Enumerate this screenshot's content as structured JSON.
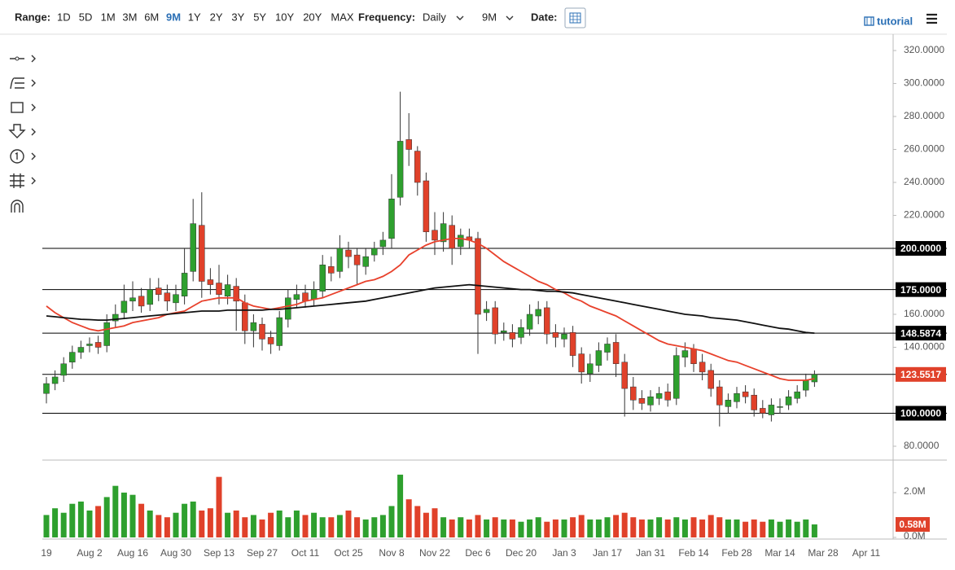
{
  "toolbar": {
    "range_label": "Range:",
    "ranges": [
      "1D",
      "5D",
      "1M",
      "3M",
      "6M",
      "9M",
      "1Y",
      "2Y",
      "3Y",
      "5Y",
      "10Y",
      "20Y",
      "MAX"
    ],
    "active_range": "9M",
    "frequency_label": "Frequency:",
    "frequency": "Daily",
    "period": "9M",
    "date_label": "Date:",
    "tutorial": "tutorial"
  },
  "chart_data": {
    "type": "candlestick",
    "categories": [
      "19",
      null,
      null,
      null,
      null,
      "Aug 2",
      null,
      null,
      null,
      null,
      "Aug 16",
      null,
      null,
      null,
      null,
      "Aug 30",
      null,
      null,
      null,
      null,
      "Sep 13",
      null,
      null,
      null,
      null,
      "Sep 27",
      null,
      null,
      null,
      null,
      "Oct 11",
      null,
      null,
      null,
      null,
      "Oct 25",
      null,
      null,
      null,
      null,
      "Nov 8",
      null,
      null,
      null,
      null,
      "Nov 22",
      null,
      null,
      null,
      null,
      "Dec 6",
      null,
      null,
      null,
      null,
      "Dec 20",
      null,
      null,
      null,
      null,
      "Jan 3",
      null,
      null,
      null,
      null,
      "Jan 17",
      null,
      null,
      null,
      null,
      "Jan 31",
      null,
      null,
      null,
      null,
      "Feb 14",
      null,
      null,
      null,
      null,
      "Feb 28",
      null,
      null,
      null,
      null,
      "Mar 14",
      null,
      null,
      null,
      null,
      "Mar 28",
      null,
      null,
      null,
      null,
      "Apr 11"
    ],
    "open": [
      112,
      118,
      123,
      131,
      137,
      141,
      143,
      141,
      156,
      161,
      168,
      171,
      166,
      176,
      173,
      167,
      171,
      186,
      214,
      181,
      179,
      171,
      177,
      167,
      150,
      154,
      146,
      141,
      157,
      169,
      173,
      169,
      174,
      189,
      186,
      199,
      196,
      189,
      196,
      201,
      206,
      231,
      266,
      259,
      241,
      211,
      204,
      214,
      201,
      207,
      206,
      161,
      164,
      149,
      149,
      146,
      151,
      159,
      164,
      149,
      145,
      149,
      136,
      124,
      129,
      137,
      143,
      131,
      116,
      109,
      105,
      109,
      113,
      109,
      134,
      139,
      131,
      126,
      116,
      104,
      107,
      113,
      111,
      103,
      99,
      104,
      105,
      109,
      114,
      119,
      null,
      null,
      null,
      null,
      null,
      null
    ],
    "high": [
      122,
      126,
      134,
      141,
      144,
      146,
      147,
      160,
      166,
      178,
      180,
      176,
      182,
      182,
      178,
      178,
      200,
      230,
      234,
      188,
      190,
      184,
      182,
      172,
      160,
      158,
      150,
      162,
      175,
      178,
      178,
      180,
      196,
      195,
      208,
      204,
      200,
      200,
      204,
      210,
      245,
      295,
      282,
      262,
      246,
      222,
      222,
      220,
      212,
      212,
      210,
      168,
      168,
      155,
      154,
      157,
      166,
      168,
      168,
      154,
      152,
      153,
      140,
      136,
      143,
      146,
      148,
      136,
      122,
      114,
      114,
      116,
      118,
      140,
      143,
      142,
      136,
      130,
      120,
      112,
      116,
      117,
      115,
      108,
      109,
      109,
      114,
      117,
      124,
      126,
      null,
      null,
      null,
      null,
      null,
      null
    ],
    "low": [
      106,
      114,
      119,
      127,
      133,
      137,
      136,
      137,
      152,
      157,
      162,
      161,
      162,
      168,
      162,
      162,
      166,
      180,
      170,
      172,
      166,
      166,
      150,
      142,
      140,
      138,
      136,
      138,
      152,
      164,
      164,
      165,
      170,
      180,
      182,
      188,
      178,
      184,
      192,
      196,
      200,
      226,
      250,
      232,
      204,
      196,
      198,
      190,
      196,
      200,
      136,
      156,
      142,
      144,
      140,
      142,
      147,
      154,
      142,
      140,
      140,
      128,
      118,
      119,
      125,
      132,
      122,
      98,
      102,
      102,
      101,
      105,
      104,
      105,
      128,
      125,
      120,
      110,
      92,
      100,
      103,
      106,
      98,
      97,
      95,
      100,
      102,
      106,
      110,
      116,
      null,
      null,
      null,
      null,
      null,
      null
    ],
    "close": [
      118,
      122,
      130,
      137,
      140,
      142,
      140,
      155,
      160,
      168,
      170,
      165,
      175,
      172,
      168,
      172,
      185,
      215,
      180,
      178,
      172,
      178,
      168,
      150,
      155,
      145,
      142,
      158,
      170,
      172,
      168,
      175,
      190,
      185,
      200,
      195,
      190,
      195,
      200,
      205,
      230,
      265,
      260,
      240,
      210,
      205,
      215,
      200,
      208,
      205,
      160,
      163,
      148,
      150,
      145,
      152,
      160,
      163,
      148,
      146,
      148,
      135,
      125,
      130,
      138,
      142,
      130,
      115,
      108,
      106,
      110,
      112,
      108,
      135,
      138,
      130,
      125,
      115,
      105,
      108,
      112,
      110,
      102,
      100,
      105,
      104,
      110,
      113,
      120,
      123.5517,
      null,
      null,
      null,
      null,
      null,
      null
    ],
    "up_color": "#2ea02e",
    "down_color": "#e0412a",
    "moving_averages": [
      {
        "color": "#e8412c",
        "values": [
          165,
          161,
          158,
          155,
          153,
          151,
          150,
          151,
          152,
          153,
          155,
          156,
          157,
          158,
          160,
          161,
          162,
          165,
          168,
          169,
          170,
          170,
          170,
          167,
          165,
          164,
          163,
          164,
          165,
          166,
          168,
          169,
          170,
          172,
          174,
          176,
          178,
          180,
          181,
          183,
          186,
          190,
          196,
          199,
          202,
          204,
          205,
          206,
          206,
          205,
          203,
          200,
          196,
          192,
          189,
          186,
          183,
          180,
          178,
          175,
          173,
          170,
          168,
          165,
          163,
          161,
          159,
          156,
          153,
          150,
          147,
          144,
          142,
          141,
          140,
          139,
          138,
          136,
          134,
          132,
          131,
          129,
          127,
          125,
          123,
          121,
          120,
          120,
          120,
          121,
          null,
          null,
          null,
          null,
          null,
          null
        ]
      },
      {
        "color": "#111111",
        "values": [
          159,
          158.5,
          158,
          157.5,
          157,
          156.8,
          156.5,
          156.5,
          157,
          157.5,
          158,
          158.5,
          159,
          159.5,
          160,
          160.5,
          161,
          161.5,
          162,
          162,
          162,
          162.5,
          162.5,
          162.5,
          162.5,
          162.5,
          163,
          163,
          163.5,
          164,
          164.5,
          165,
          165.5,
          166,
          166.5,
          167,
          167.5,
          168,
          169,
          170,
          171,
          172,
          173,
          174,
          175,
          176,
          176.5,
          177,
          177.5,
          178,
          177.5,
          177,
          176.5,
          176,
          175.5,
          175,
          175,
          174.5,
          174,
          174,
          173.5,
          173,
          172,
          171,
          170,
          169,
          168,
          167,
          166,
          165,
          164,
          163,
          162,
          161,
          160,
          159.5,
          159,
          158,
          157.5,
          157,
          156.5,
          155.5,
          154.5,
          153.5,
          152.5,
          151.5,
          151,
          150,
          149,
          148.5874,
          null,
          null,
          null,
          null,
          null,
          null
        ]
      }
    ],
    "ylim": [
      71.6,
      329.9
    ],
    "yticks": [
      {
        "value": 320,
        "label": "320.0000"
      },
      {
        "value": 300,
        "label": "300.0000"
      },
      {
        "value": 280,
        "label": "280.0000"
      },
      {
        "value": 260,
        "label": "260.0000"
      },
      {
        "value": 240,
        "label": "240.0000"
      },
      {
        "value": 220,
        "label": "220.0000"
      },
      {
        "value": 160,
        "label": "160.0000"
      },
      {
        "value": 140,
        "label": "140.0000"
      },
      {
        "value": 80,
        "label": "80.0000"
      }
    ],
    "levels": [
      {
        "value": 200,
        "label": "200.0000",
        "color": "#000000"
      },
      {
        "value": 175,
        "label": "175.0000",
        "color": "#000000"
      },
      {
        "value": 148.5874,
        "label": "148.5874",
        "color": "#000000"
      },
      {
        "value": 123.5517,
        "label": "123.5517",
        "color": "#e0412a"
      },
      {
        "value": 100,
        "label": "100.0000",
        "color": "#000000"
      }
    ],
    "volume": {
      "values": [
        1.0,
        1.3,
        1.1,
        1.5,
        1.6,
        1.2,
        1.4,
        1.8,
        2.3,
        2.0,
        1.9,
        1.5,
        1.2,
        1.0,
        0.9,
        1.1,
        1.5,
        1.6,
        1.2,
        1.3,
        2.7,
        1.1,
        1.2,
        0.9,
        1.0,
        0.8,
        1.1,
        1.2,
        0.9,
        1.2,
        1.0,
        1.1,
        0.9,
        0.9,
        1.0,
        1.2,
        0.9,
        0.8,
        0.9,
        1.0,
        1.4,
        2.8,
        1.7,
        1.4,
        1.1,
        1.3,
        0.9,
        0.8,
        0.9,
        0.8,
        1.0,
        0.8,
        0.9,
        0.8,
        0.8,
        0.7,
        0.8,
        0.9,
        0.7,
        0.8,
        0.8,
        0.9,
        1.0,
        0.8,
        0.8,
        0.9,
        1.0,
        1.1,
        0.9,
        0.8,
        0.8,
        0.9,
        0.8,
        0.9,
        0.8,
        0.9,
        0.8,
        1.0,
        0.9,
        0.8,
        0.8,
        0.7,
        0.8,
        0.7,
        0.8,
        0.7,
        0.8,
        0.7,
        0.8,
        0.58,
        null,
        null,
        null,
        null,
        null,
        null
      ],
      "ylim": [
        0,
        3.45
      ],
      "yticks": [
        {
          "value": 2,
          "label": "2.0M"
        },
        {
          "value": 0,
          "label": "0.0M"
        }
      ],
      "last": {
        "value": 0.58,
        "label": "0.58M",
        "color": "#e0412a"
      }
    }
  }
}
